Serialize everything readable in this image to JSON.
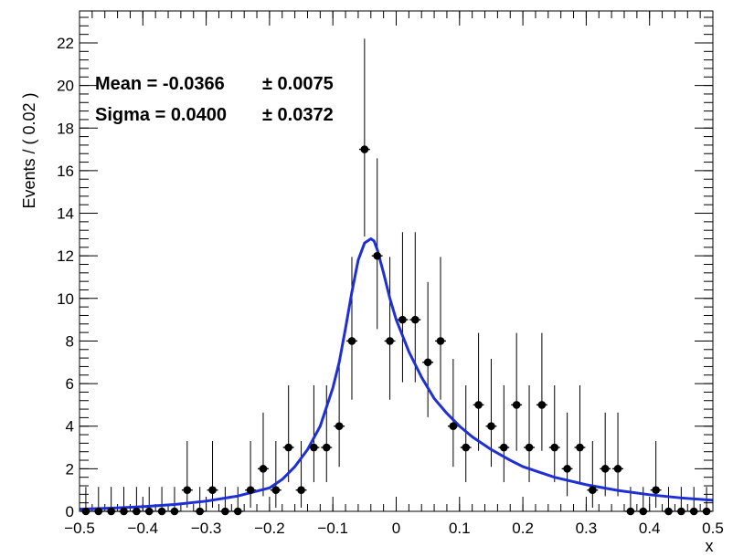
{
  "chart_data": {
    "type": "scatter",
    "xlabel": "x",
    "ylabel": "Events / ( 0.02 )",
    "xlim": [
      -0.5,
      0.5
    ],
    "ylim": [
      0,
      23.5
    ],
    "xticks": [
      -0.5,
      -0.4,
      -0.3,
      -0.2,
      -0.1,
      0,
      0.1,
      0.2,
      0.3,
      0.4,
      0.5
    ],
    "xtick_labels": [
      "−0.5",
      "−0.4",
      "−0.3",
      "−0.2",
      "−0.1",
      "0",
      "0.1",
      "0.2",
      "0.3",
      "0.4",
      "0.5"
    ],
    "yticks": [
      0,
      2,
      4,
      6,
      8,
      10,
      12,
      14,
      16,
      18,
      20,
      22
    ],
    "ytick_labels": [
      "0",
      "2",
      "4",
      "6",
      "8",
      "10",
      "12",
      "14",
      "16",
      "18",
      "20",
      "22"
    ],
    "bin_width": 0.02,
    "annotations": {
      "mean_label": "Mean = -0.0366",
      "mean_error": "± 0.0075",
      "sigma_label": "Sigma = 0.0400",
      "sigma_error": "± 0.0372"
    },
    "series": [
      {
        "type": "scatter-errorbar",
        "color": "#000000",
        "x": [
          -0.49,
          -0.47,
          -0.45,
          -0.43,
          -0.41,
          -0.39,
          -0.37,
          -0.35,
          -0.33,
          -0.31,
          -0.29,
          -0.27,
          -0.25,
          -0.23,
          -0.21,
          -0.19,
          -0.17,
          -0.15,
          -0.13,
          -0.11,
          -0.09,
          -0.07,
          -0.05,
          -0.03,
          -0.01,
          0.01,
          0.03,
          0.05,
          0.07,
          0.09,
          0.11,
          0.13,
          0.15,
          0.17,
          0.19,
          0.21,
          0.23,
          0.25,
          0.27,
          0.29,
          0.31,
          0.33,
          0.35,
          0.37,
          0.39,
          0.41,
          0.43,
          0.45,
          0.47,
          0.49
        ],
        "y": [
          0,
          0,
          0,
          0,
          0,
          0,
          0,
          0,
          1,
          0,
          1,
          0,
          0,
          1,
          2,
          1,
          3,
          1,
          3,
          3,
          4,
          8,
          17,
          12,
          8,
          9,
          9,
          7,
          8,
          4,
          3,
          5,
          4,
          3,
          5,
          3,
          5,
          3,
          2,
          3,
          1,
          2,
          2,
          0,
          0,
          1,
          0,
          0,
          0,
          0
        ],
        "y_err_low": [
          0,
          0,
          0,
          0,
          0,
          0,
          0,
          0,
          0.83,
          0,
          0.83,
          0,
          0,
          0.83,
          1.29,
          0.83,
          1.63,
          0.83,
          1.63,
          1.63,
          1.91,
          2.76,
          4.1,
          3.44,
          2.76,
          2.94,
          2.94,
          2.58,
          2.76,
          1.91,
          1.63,
          2.16,
          1.91,
          1.63,
          2.16,
          1.63,
          2.16,
          1.63,
          1.29,
          1.63,
          0.83,
          1.29,
          1.29,
          0,
          0,
          0.83,
          0,
          0,
          0,
          0
        ],
        "y_err_high": [
          1.15,
          1.15,
          1.15,
          1.15,
          1.15,
          1.15,
          1.15,
          1.15,
          2.3,
          1.15,
          2.3,
          1.15,
          1.15,
          2.3,
          2.64,
          2.3,
          2.92,
          2.3,
          2.92,
          2.92,
          3.16,
          3.95,
          5.2,
          4.58,
          3.95,
          4.11,
          4.11,
          3.77,
          3.95,
          3.16,
          2.92,
          3.38,
          3.16,
          2.92,
          3.38,
          2.92,
          3.38,
          2.92,
          2.64,
          2.92,
          2.3,
          2.64,
          2.64,
          1.15,
          1.15,
          2.3,
          1.15,
          1.15,
          1.15,
          1.15
        ]
      },
      {
        "type": "line",
        "color": "#1f2fd6",
        "x": [
          -0.5,
          -0.45,
          -0.4,
          -0.35,
          -0.3,
          -0.25,
          -0.2,
          -0.18,
          -0.16,
          -0.14,
          -0.12,
          -0.1,
          -0.09,
          -0.08,
          -0.07,
          -0.06,
          -0.05,
          -0.04,
          -0.035,
          -0.03,
          -0.02,
          -0.01,
          0,
          0.02,
          0.04,
          0.06,
          0.08,
          0.1,
          0.12,
          0.15,
          0.18,
          0.2,
          0.25,
          0.3,
          0.35,
          0.4,
          0.45,
          0.5
        ],
        "y": [
          0.1,
          0.15,
          0.22,
          0.32,
          0.48,
          0.72,
          1.1,
          1.5,
          2.1,
          2.9,
          4.0,
          5.8,
          7.0,
          8.6,
          10.3,
          11.8,
          12.6,
          12.8,
          12.7,
          12.3,
          11.2,
          10.0,
          9.0,
          7.5,
          6.3,
          5.3,
          4.6,
          4.0,
          3.5,
          2.9,
          2.4,
          2.1,
          1.6,
          1.25,
          0.98,
          0.78,
          0.63,
          0.52
        ]
      }
    ]
  }
}
